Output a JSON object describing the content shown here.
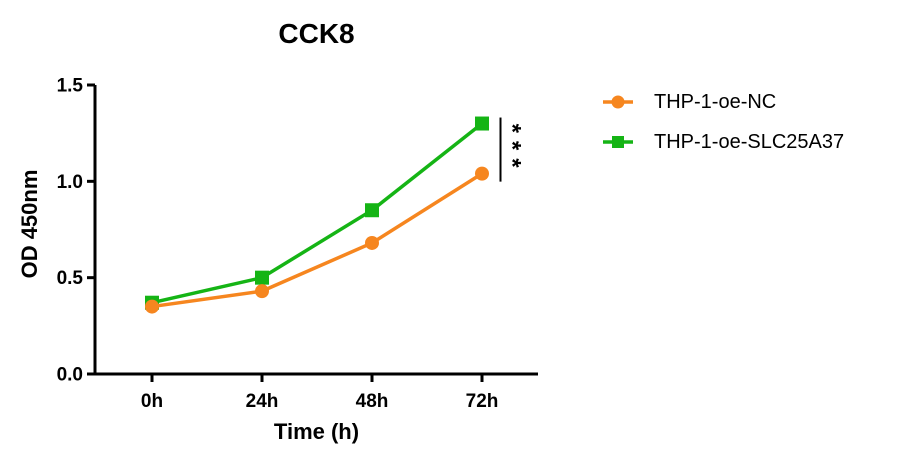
{
  "chart_data": {
    "type": "line",
    "title": "CCK8",
    "xlabel": "Time (h)",
    "ylabel": "OD 450nm",
    "categories": [
      "0h",
      "24h",
      "48h",
      "72h"
    ],
    "series": [
      {
        "name": "THP-1-oe-NC",
        "color": "#F6861F",
        "marker": "circle",
        "values": [
          0.35,
          0.43,
          0.68,
          1.04
        ]
      },
      {
        "name": "THP-1-oe-SLC25A37",
        "color": "#15B415",
        "marker": "square",
        "values": [
          0.37,
          0.5,
          0.85,
          1.3
        ]
      }
    ],
    "ylim": [
      0.0,
      1.5
    ],
    "yticks": [
      0.0,
      0.5,
      1.0,
      1.5
    ],
    "ytick_labels": [
      "0.0",
      "0.5",
      "1.0",
      "1.5"
    ],
    "grid": false,
    "legend_position": "right",
    "axis_color": "#000000",
    "annotation": {
      "text": "***",
      "x_category": "72h",
      "compares": [
        "THP-1-oe-NC",
        "THP-1-oe-SLC25A37"
      ]
    }
  }
}
